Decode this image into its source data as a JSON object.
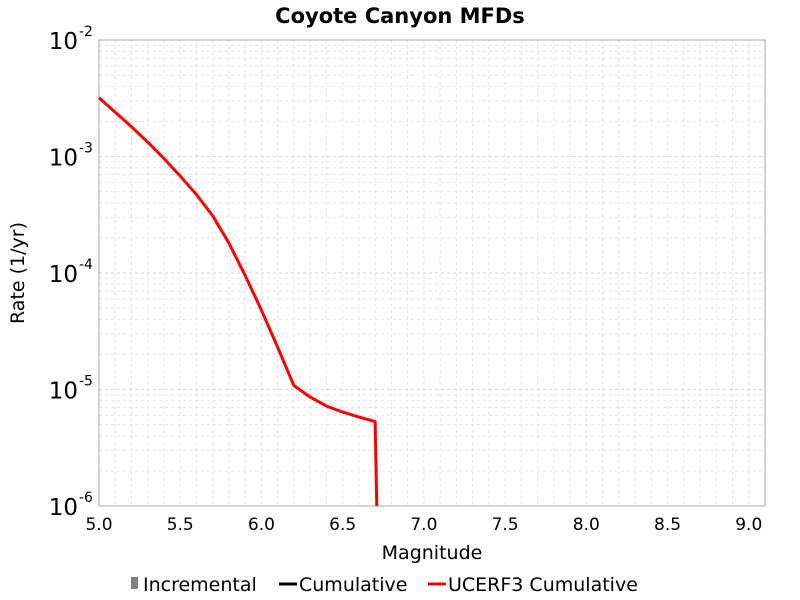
{
  "chart_data": {
    "type": "line",
    "title": "Coyote Canyon MFDs",
    "xlabel": "Magnitude",
    "ylabel": "Rate (1/yr)",
    "xlim": [
      5.0,
      9.1
    ],
    "ylim": [
      1e-06,
      0.01
    ],
    "yscale": "log",
    "grid": true,
    "x_ticks": [
      "5.0",
      "5.5",
      "6.0",
      "6.5",
      "7.0",
      "7.5",
      "8.0",
      "8.5",
      "9.0"
    ],
    "y_ticks": [
      {
        "base": "10",
        "exp": "-2",
        "value": 0.01
      },
      {
        "base": "10",
        "exp": "-3",
        "value": 0.001
      },
      {
        "base": "10",
        "exp": "-4",
        "value": 0.0001
      },
      {
        "base": "10",
        "exp": "-5",
        "value": 1e-05
      },
      {
        "base": "10",
        "exp": "-6",
        "value": 1e-06
      }
    ],
    "legend_position": "bottom",
    "series": [
      {
        "name": "Incremental",
        "color": "#808080",
        "legend_symbol": "bar",
        "x": [],
        "y": []
      },
      {
        "name": "Cumulative",
        "color": "#000000",
        "legend_symbol": "line",
        "x": [],
        "y": []
      },
      {
        "name": "UCERF3 Cumulative",
        "color": "#ff0000",
        "legend_symbol": "line",
        "x": [
          5.0,
          5.1,
          5.2,
          5.3,
          5.4,
          5.5,
          5.6,
          5.7,
          5.8,
          5.9,
          6.0,
          6.1,
          6.2,
          6.3,
          6.4,
          6.5,
          6.6,
          6.7,
          6.71
        ],
        "y": [
          0.0032,
          0.0024,
          0.0018,
          0.00133,
          0.00096,
          0.00068,
          0.00047,
          0.00031,
          0.00018,
          9.5e-05,
          4.8e-05,
          2.3e-05,
          1.08e-05,
          8.6e-06,
          7.2e-06,
          6.4e-06,
          5.8e-06,
          5.3e-06,
          1e-06
        ]
      }
    ]
  }
}
